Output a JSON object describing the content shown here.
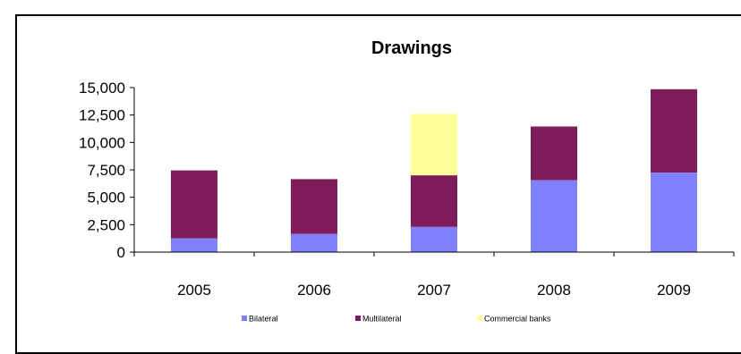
{
  "chart_data": {
    "type": "bar",
    "stacked": true,
    "title": "Drawings",
    "xlabel": "",
    "ylabel": "",
    "categories": [
      "2005",
      "2006",
      "2007",
      "2008",
      "2009"
    ],
    "series": [
      {
        "name": "Bilateral",
        "color": "#8080ff",
        "values": [
          1250,
          1650,
          2300,
          6550,
          7250
        ]
      },
      {
        "name": "Multilateral",
        "color": "#7f1d5b",
        "values": [
          6200,
          5000,
          4700,
          4900,
          7600
        ]
      },
      {
        "name": "Commercial banks",
        "color": "#ffff99",
        "values": [
          0,
          0,
          5600,
          0,
          0
        ]
      }
    ],
    "ylim": [
      0,
      15000
    ],
    "yticks": [
      0,
      2500,
      5000,
      7500,
      10000,
      12500,
      15000
    ],
    "ytick_labels": [
      "0",
      "2,500",
      "5,000",
      "7,500",
      "10,000",
      "12,500",
      "15,000"
    ],
    "grid": false,
    "legend_position": "bottom"
  }
}
